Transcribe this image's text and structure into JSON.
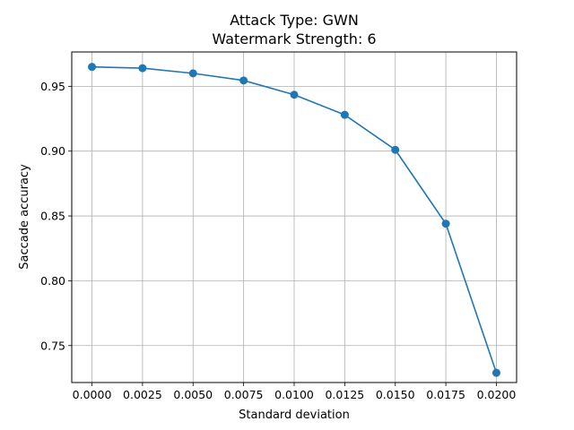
{
  "chart_data": {
    "type": "line",
    "title_line1": "Attack Type: GWN",
    "title_line2": "Watermark Strength: 6",
    "xlabel": "Standard deviation",
    "ylabel": "Saccade accuracy",
    "x": [
      0.0,
      0.0025,
      0.005,
      0.0075,
      0.01,
      0.0125,
      0.015,
      0.0175,
      0.02
    ],
    "y": [
      0.965,
      0.964,
      0.96,
      0.9545,
      0.9435,
      0.928,
      0.901,
      0.844,
      0.729
    ],
    "xlim": [
      -0.001,
      0.021
    ],
    "ylim": [
      0.7215,
      0.9765
    ],
    "xticks": [
      "0.0000",
      "0.0025",
      "0.0050",
      "0.0075",
      "0.0100",
      "0.0125",
      "0.0150",
      "0.0175",
      "0.0200"
    ],
    "xtick_values": [
      0.0,
      0.0025,
      0.005,
      0.0075,
      0.01,
      0.0125,
      0.015,
      0.0175,
      0.02
    ],
    "yticks": [
      "0.75",
      "0.80",
      "0.85",
      "0.90",
      "0.95"
    ],
    "ytick_values": [
      0.75,
      0.8,
      0.85,
      0.9,
      0.95
    ],
    "grid": true,
    "line_color": "#1f77b4",
    "grid_color": "#b0b0b0"
  }
}
